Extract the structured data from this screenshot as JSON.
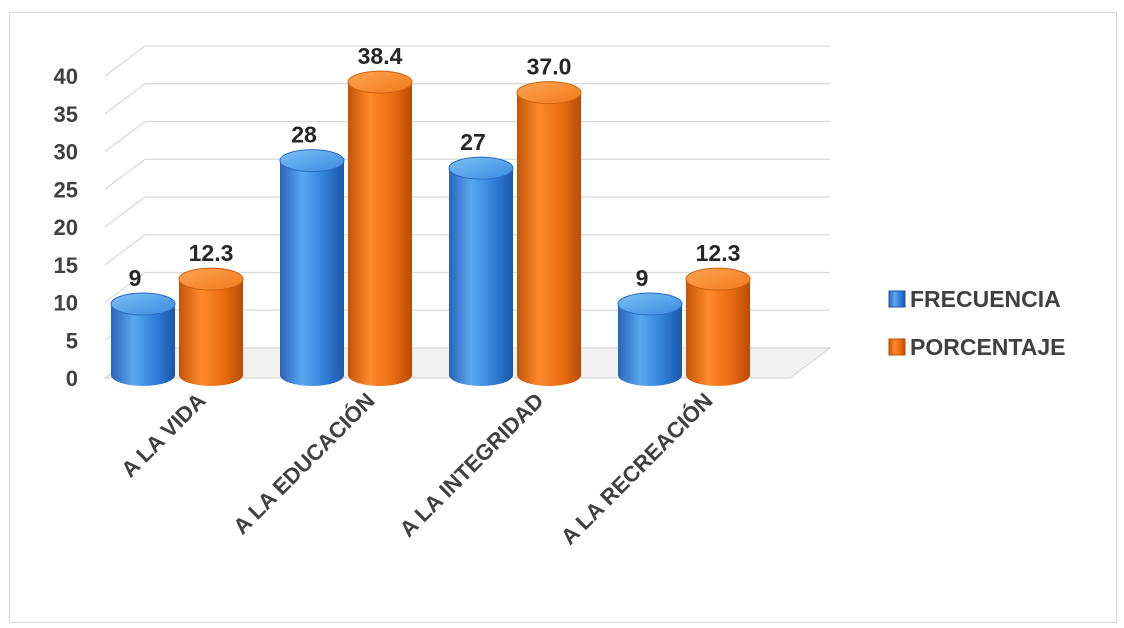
{
  "chart_data": {
    "type": "bar",
    "style": "3d-cylinder",
    "title": "",
    "xlabel": "",
    "ylabel": "",
    "categories": [
      "A LA VIDA",
      "A LA EDUCACIÓN",
      "A LA INTEGRIDAD",
      "A LA RECREACIÓN"
    ],
    "series": [
      {
        "name": "FRECUENCIA",
        "color": "#2e75d0",
        "values": [
          9,
          28,
          27,
          9
        ],
        "labels": [
          "9",
          "28",
          "27",
          "9"
        ]
      },
      {
        "name": "PORCENTAJE",
        "color": "#e06a0e",
        "values": [
          12.3,
          38.4,
          37.0,
          12.3
        ],
        "labels": [
          "12.3",
          "38.4",
          "37.0",
          "12.3"
        ]
      }
    ],
    "ylim": [
      0,
      40
    ],
    "yticks": [
      0,
      5,
      10,
      15,
      20,
      25,
      30,
      35,
      40
    ],
    "grid": true,
    "legend_position": "right"
  }
}
